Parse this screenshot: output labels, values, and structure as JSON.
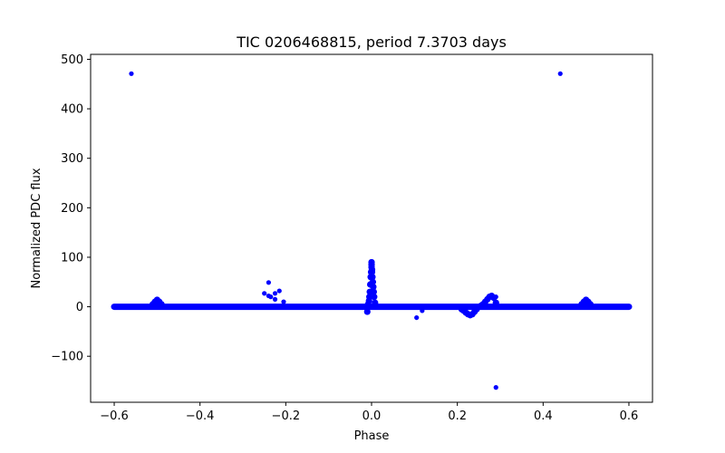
{
  "chart_data": {
    "type": "scatter",
    "title": "TIC 0206468815, period 7.3703 days",
    "xlabel": "Phase",
    "ylabel": "Normalized PDC flux",
    "xlim": [
      -0.655,
      0.655
    ],
    "ylim": [
      -193,
      510
    ],
    "x_ticks": [
      -0.6,
      -0.4,
      -0.2,
      0.0,
      0.2,
      0.4,
      0.6
    ],
    "x_tick_labels": [
      "−0.6",
      "−0.4",
      "−0.2",
      "0.0",
      "0.2",
      "0.4",
      "0.6"
    ],
    "y_ticks": [
      -100,
      0,
      100,
      200,
      300,
      400,
      500
    ],
    "y_tick_labels": [
      "−100",
      "0",
      "100",
      "200",
      "300",
      "400",
      "500"
    ],
    "grid": false,
    "marker_color": "#0000ff",
    "baseline": {
      "x_range": [
        -0.6,
        0.6
      ],
      "y": 0,
      "thickness_flux": 5
    },
    "features": [
      {
        "name": "transit-peak-0.0",
        "x": [
          0.0,
          0.0,
          0.0,
          0.001,
          0.001,
          0.002,
          -0.001,
          -0.002,
          -0.003,
          0.003,
          0.004,
          0.005,
          0.006,
          -0.004,
          -0.005,
          -0.006,
          0.008,
          -0.008,
          0.01,
          -0.01
        ],
        "y": [
          90,
          85,
          80,
          75,
          70,
          60,
          70,
          60,
          45,
          50,
          40,
          30,
          20,
          30,
          20,
          12,
          8,
          5,
          2,
          -10
        ]
      },
      {
        "name": "bump-0.5",
        "x": [
          -0.51,
          -0.505,
          -0.5,
          -0.495,
          -0.49,
          0.49,
          0.495,
          0.5,
          0.505,
          0.51
        ],
        "y": [
          5,
          10,
          14,
          10,
          5,
          5,
          10,
          14,
          10,
          5
        ]
      },
      {
        "name": "bump-0.28",
        "x": [
          0.255,
          0.26,
          0.265,
          0.27,
          0.275,
          0.28,
          0.285,
          0.29
        ],
        "y": [
          2,
          5,
          10,
          15,
          20,
          22,
          18,
          8
        ]
      },
      {
        "name": "dip-0.23",
        "x": [
          0.21,
          0.215,
          0.22,
          0.225,
          0.23,
          0.235,
          0.24,
          0.245
        ],
        "y": [
          -5,
          -8,
          -12,
          -15,
          -17,
          -15,
          -10,
          -5
        ]
      }
    ],
    "points": {
      "x": [
        -0.56,
        0.44,
        0.29,
        -0.24,
        -0.25,
        -0.235,
        -0.225,
        -0.215,
        -0.205,
        -0.225,
        -0.24,
        0.105,
        0.118,
        0.29
      ],
      "y": [
        471,
        471,
        -163,
        49,
        27,
        20,
        27,
        32,
        10,
        15,
        22,
        -22,
        -8,
        20
      ]
    }
  }
}
